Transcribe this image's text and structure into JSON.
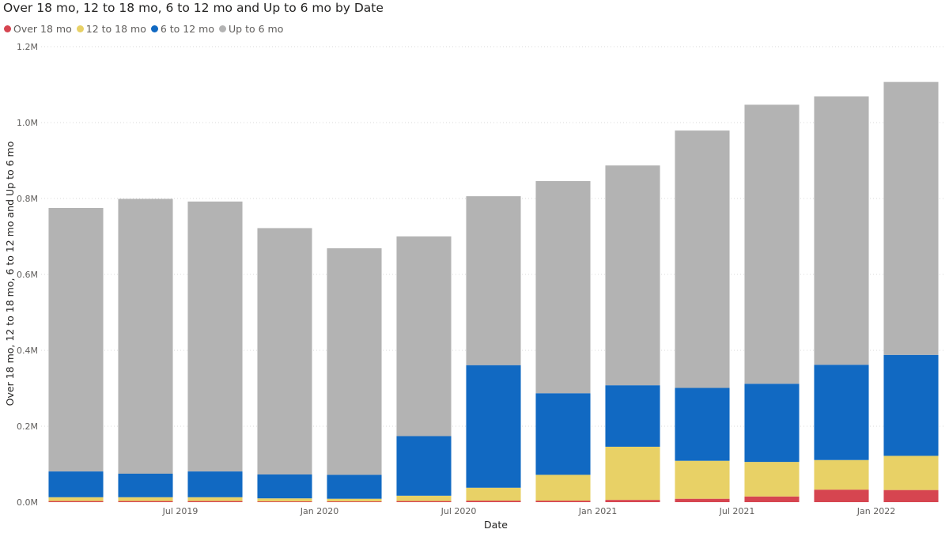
{
  "chart_data": {
    "type": "bar",
    "stacked": true,
    "title": "Over 18 mo, 12 to 18 mo, 6 to 12 mo and Up to 6 mo by Date",
    "xlabel": "Date",
    "ylabel": "Over 18 mo, 12 to 18 mo, 6 to 12 mo and Up to 6 mo",
    "ylim": [
      0,
      1200000
    ],
    "y_ticks": [
      {
        "value": 0,
        "label": "0.0M"
      },
      {
        "value": 200000,
        "label": "0.2M"
      },
      {
        "value": 400000,
        "label": "0.4M"
      },
      {
        "value": 600000,
        "label": "0.6M"
      },
      {
        "value": 800000,
        "label": "0.8M"
      },
      {
        "value": 1000000,
        "label": "1.0M"
      },
      {
        "value": 1200000,
        "label": "1.2M"
      }
    ],
    "x_ticks": [
      {
        "index": 1.5,
        "label": "Jul 2019"
      },
      {
        "index": 3.5,
        "label": "Jan 2020"
      },
      {
        "index": 5.5,
        "label": "Jul 2020"
      },
      {
        "index": 7.5,
        "label": "Jan 2021"
      },
      {
        "index": 9.5,
        "label": "Jul 2021"
      },
      {
        "index": 11.5,
        "label": "Jan 2022"
      }
    ],
    "grid": "horizontal dotted",
    "legend_position": "top-left",
    "bar_count": 13,
    "series": [
      {
        "name": "Over 18 mo",
        "color": "#d64550",
        "values": [
          3000,
          3000,
          3000,
          2000,
          2000,
          3000,
          4000,
          4000,
          6000,
          9000,
          15000,
          33000,
          32000
        ]
      },
      {
        "name": "12 to 18 mo",
        "color": "#e8d166",
        "values": [
          10000,
          10000,
          10000,
          8000,
          7000,
          14000,
          34000,
          68000,
          140000,
          100000,
          91000,
          78000,
          90000
        ]
      },
      {
        "name": "6 to 12 mo",
        "color": "#1169c2",
        "values": [
          68000,
          62000,
          68000,
          63000,
          63000,
          157000,
          323000,
          215000,
          162000,
          192000,
          206000,
          251000,
          266000
        ]
      },
      {
        "name": "Up to 6 mo",
        "color": "#b3b3b3",
        "values": [
          694000,
          724000,
          711000,
          649000,
          597000,
          526000,
          445000,
          559000,
          579000,
          678000,
          735000,
          707000,
          719000
        ]
      }
    ]
  }
}
